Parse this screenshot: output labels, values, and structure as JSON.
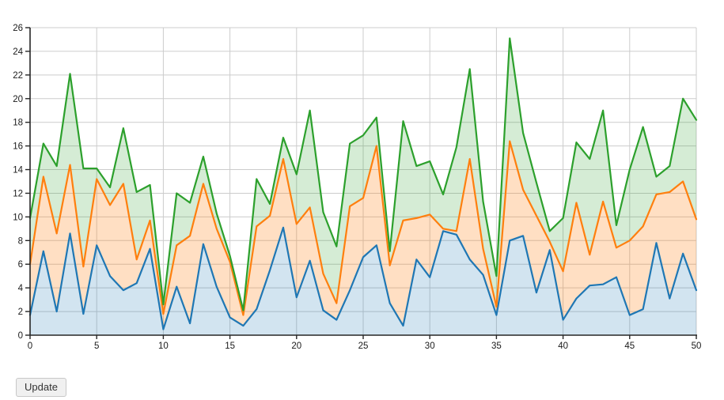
{
  "controls": {
    "update_label": "Update"
  },
  "colors": {
    "background": "#ffffff",
    "grid": "#cccccc",
    "axis": "#262626",
    "tick_label": "#1a1a1a",
    "blue_line": "#1f77b4",
    "orange_line": "#ff7f0e",
    "green_line": "#2ca02c"
  },
  "chart_data": {
    "type": "area",
    "stacked": true,
    "title": "",
    "xlabel": "",
    "ylabel": "",
    "grid": true,
    "legend": "none",
    "xlim": [
      0,
      50
    ],
    "ylim": [
      0,
      26
    ],
    "x_ticks": [
      0,
      5,
      10,
      15,
      20,
      25,
      30,
      35,
      40,
      45,
      50
    ],
    "y_ticks": [
      0,
      2,
      4,
      6,
      8,
      10,
      12,
      14,
      16,
      18,
      20,
      22,
      24,
      26
    ],
    "x": [
      0,
      1,
      2,
      3,
      4,
      5,
      6,
      7,
      8,
      9,
      10,
      11,
      12,
      13,
      14,
      15,
      16,
      17,
      18,
      19,
      20,
      21,
      22,
      23,
      24,
      25,
      26,
      27,
      28,
      29,
      30,
      31,
      32,
      33,
      34,
      35,
      36,
      37,
      38,
      39,
      40,
      41,
      42,
      43,
      44,
      45,
      46,
      47,
      48,
      49,
      50
    ],
    "series": [
      {
        "name": "blue",
        "color": "#1f77b4",
        "fill": "rgba(31,119,180,0.20)",
        "values": [
          1.7,
          7.1,
          2.0,
          8.6,
          1.8,
          7.6,
          5.0,
          3.8,
          4.4,
          7.3,
          0.5,
          4.1,
          1.0,
          7.7,
          4.1,
          1.5,
          0.8,
          2.2,
          5.5,
          9.1,
          3.2,
          6.3,
          2.1,
          1.3,
          3.8,
          6.6,
          7.6,
          2.7,
          0.8,
          6.4,
          4.9,
          8.8,
          8.5,
          6.4,
          5.1,
          1.7,
          8.0,
          8.4,
          3.6,
          7.2,
          1.3,
          3.1,
          4.2,
          4.3,
          4.9,
          1.7,
          2.2,
          7.8,
          3.1,
          6.9,
          3.8
        ]
      },
      {
        "name": "orange",
        "color": "#ff7f0e",
        "fill": "rgba(255,127,14,0.25)",
        "values": [
          4.3,
          6.3,
          6.6,
          5.8,
          4.0,
          5.6,
          6.0,
          9.0,
          2.0,
          2.4,
          1.3,
          3.5,
          7.4,
          5.1,
          4.9,
          4.7,
          0.9,
          7.0,
          4.6,
          5.8,
          6.2,
          4.5,
          3.1,
          1.4,
          7.1,
          5.0,
          8.4,
          3.2,
          8.9,
          3.5,
          5.3,
          0.2,
          0.3,
          8.5,
          2.2,
          0.7,
          8.4,
          3.9,
          6.5,
          0.7,
          4.1,
          8.1,
          2.6,
          7.0,
          2.5,
          6.3,
          7.0,
          4.1,
          9.0,
          6.1,
          6.0
        ]
      },
      {
        "name": "green",
        "color": "#2ca02c",
        "fill": "rgba(44,160,44,0.20)",
        "values": [
          3.9,
          2.8,
          5.7,
          7.7,
          8.3,
          0.9,
          1.5,
          4.7,
          5.7,
          3.0,
          0.8,
          4.4,
          2.8,
          2.3,
          1.3,
          0.5,
          0.4,
          4.0,
          1.0,
          1.8,
          4.2,
          8.2,
          5.2,
          4.8,
          5.3,
          5.3,
          2.4,
          1.2,
          8.4,
          4.4,
          4.5,
          2.9,
          7.1,
          7.6,
          4.0,
          2.6,
          8.7,
          4.8,
          2.8,
          0.9,
          4.5,
          5.1,
          8.1,
          7.7,
          1.9,
          6.0,
          8.4,
          1.5,
          2.2,
          7.0,
          8.4
        ]
      }
    ]
  }
}
